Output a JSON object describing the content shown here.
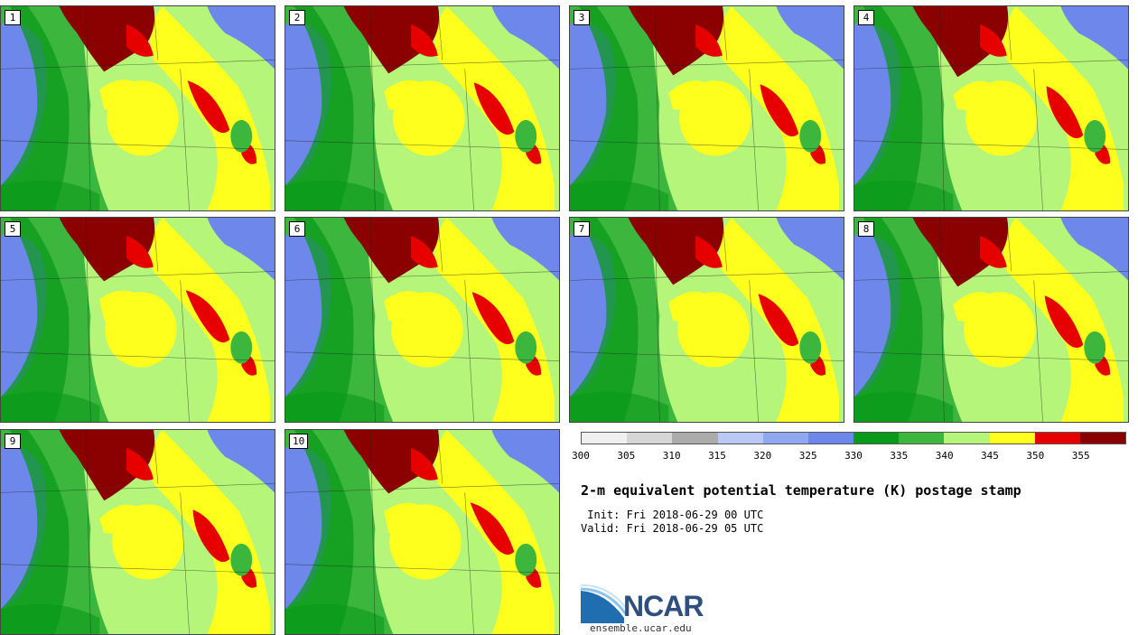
{
  "stamps": [
    {
      "label": "1"
    },
    {
      "label": "2"
    },
    {
      "label": "3"
    },
    {
      "label": "4"
    },
    {
      "label": "5"
    },
    {
      "label": "6"
    },
    {
      "label": "7"
    },
    {
      "label": "8"
    },
    {
      "label": "9"
    },
    {
      "label": "10"
    }
  ],
  "colorbar": {
    "colors": [
      "#f0f0f0",
      "#d6d6d6",
      "#ababab",
      "#b9c8f5",
      "#8fa8f0",
      "#6d88ea",
      "#0a9a1a",
      "#3cb63c",
      "#b4f57a",
      "#ffff1e",
      "#e60000",
      "#8b0000"
    ],
    "ticks": [
      "300",
      "305",
      "310",
      "315",
      "320",
      "325",
      "330",
      "335",
      "340",
      "345",
      "350",
      "355"
    ]
  },
  "title": "2-m equivalent potential temperature (K) postage stamp",
  "init": " Init: Fri 2018-06-29 00 UTC",
  "valid": "Valid: Fri 2018-06-29 05 UTC",
  "logo": {
    "text": "NCAR",
    "url": "ensemble.ucar.edu"
  }
}
